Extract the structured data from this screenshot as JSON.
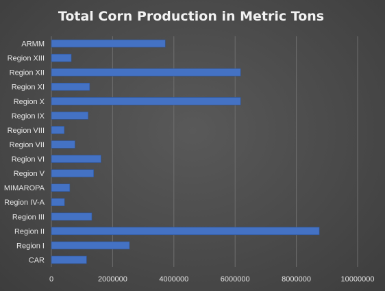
{
  "chart_data": {
    "type": "bar",
    "orientation": "horizontal",
    "title": "Total Corn Production in Metric Tons",
    "categories": [
      "ARMM",
      "Region XIII",
      "Region XII",
      "Region XI",
      "Region X",
      "Region IX",
      "Region VIII",
      "Region VII",
      "Region VI",
      "Region V",
      "MIMAROPA",
      "Region IV-A",
      "Region III",
      "Region II",
      "Region I",
      "CAR"
    ],
    "values": [
      3720000,
      650000,
      6180000,
      1250000,
      6180000,
      1200000,
      420000,
      770000,
      1620000,
      1380000,
      600000,
      430000,
      1320000,
      8750000,
      2550000,
      1150000
    ],
    "xlim": [
      0,
      10000000
    ],
    "xticks": [
      0,
      2000000,
      4000000,
      6000000,
      8000000,
      10000000
    ],
    "xtick_labels": [
      "0",
      "2000000",
      "4000000",
      "6000000",
      "8000000",
      "10000000"
    ],
    "grid": "vertical",
    "bar_color": "#4472c4",
    "xlabel": "",
    "ylabel": ""
  }
}
